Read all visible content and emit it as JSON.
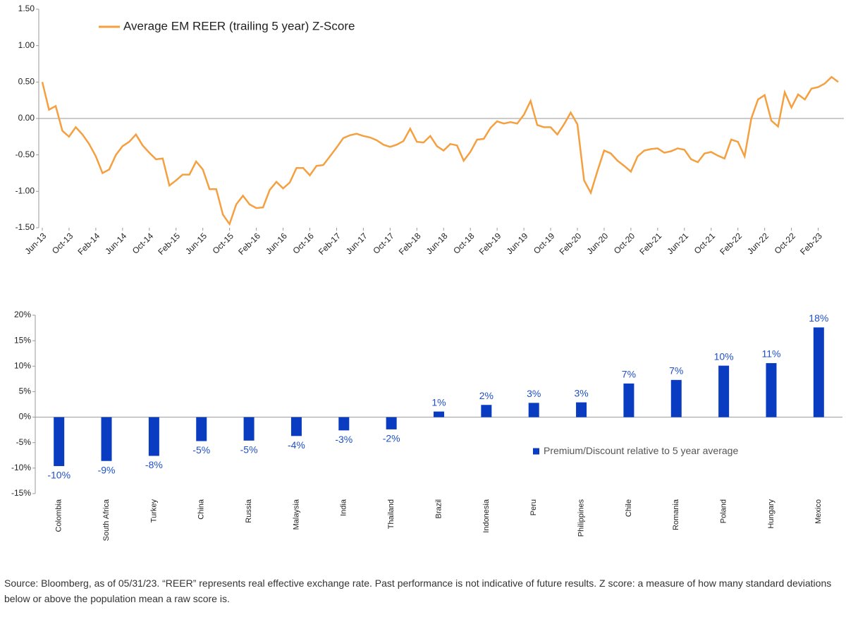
{
  "chart_data": [
    {
      "type": "line",
      "categories": [
        "Jun-13",
        null,
        null,
        null,
        "Oct-13",
        null,
        null,
        null,
        "Feb-14",
        null,
        null,
        null,
        "Jun-14",
        null,
        null,
        null,
        "Oct-14",
        null,
        null,
        null,
        "Feb-15",
        null,
        null,
        null,
        "Jun-15",
        null,
        null,
        null,
        "Oct-15",
        null,
        null,
        null,
        "Feb-16",
        null,
        null,
        null,
        "Jun-16",
        null,
        null,
        null,
        "Oct-16",
        null,
        null,
        null,
        "Feb-17",
        null,
        null,
        null,
        "Jun-17",
        null,
        null,
        null,
        "Oct-17",
        null,
        null,
        null,
        "Feb-18",
        null,
        null,
        null,
        "Jun-18",
        null,
        null,
        null,
        "Oct-18",
        null,
        null,
        null,
        "Feb-19",
        null,
        null,
        null,
        "Jun-19",
        null,
        null,
        null,
        "Oct-19",
        null,
        null,
        null,
        "Feb-20",
        null,
        null,
        null,
        "Jun-20",
        null,
        null,
        null,
        "Oct-20",
        null,
        null,
        null,
        "Feb-21",
        null,
        null,
        null,
        "Jun-21",
        null,
        null,
        null,
        "Oct-21",
        null,
        null,
        null,
        "Feb-22",
        null,
        null,
        null,
        "Jun-22",
        null,
        null,
        null,
        "Oct-22",
        null,
        null,
        null,
        "Feb-23",
        null,
        null,
        null
      ],
      "series": [
        {
          "name": "Average EM REER (trailing 5 year) Z-Score",
          "color": "#f5a040",
          "values": [
            0.5,
            0.12,
            0.17,
            -0.17,
            -0.25,
            -0.12,
            -0.22,
            -0.35,
            -0.52,
            -0.75,
            -0.7,
            -0.5,
            -0.38,
            -0.32,
            -0.22,
            -0.37,
            -0.47,
            -0.56,
            -0.55,
            -0.92,
            -0.85,
            -0.77,
            -0.77,
            -0.59,
            -0.7,
            -0.97,
            -0.97,
            -1.32,
            -1.45,
            -1.18,
            -1.06,
            -1.18,
            -1.23,
            -1.22,
            -0.98,
            -0.87,
            -0.96,
            -0.88,
            -0.68,
            -0.68,
            -0.78,
            -0.65,
            -0.64,
            -0.52,
            -0.4,
            -0.27,
            -0.23,
            -0.21,
            -0.24,
            -0.26,
            -0.3,
            -0.36,
            -0.39,
            -0.36,
            -0.31,
            -0.14,
            -0.32,
            -0.33,
            -0.24,
            -0.38,
            -0.44,
            -0.35,
            -0.37,
            -0.58,
            -0.46,
            -0.29,
            -0.28,
            -0.13,
            -0.04,
            -0.07,
            -0.05,
            -0.07,
            0.05,
            0.24,
            -0.09,
            -0.12,
            -0.12,
            -0.22,
            -0.08,
            0.08,
            -0.08,
            -0.85,
            -1.02,
            -0.72,
            -0.44,
            -0.48,
            -0.58,
            -0.65,
            -0.73,
            -0.52,
            -0.44,
            -0.42,
            -0.41,
            -0.47,
            -0.45,
            -0.41,
            -0.43,
            -0.56,
            -0.6,
            -0.48,
            -0.46,
            -0.51,
            -0.55,
            -0.29,
            -0.32,
            -0.52,
            0.0,
            0.26,
            0.32,
            -0.03,
            -0.11,
            0.36,
            0.15,
            0.33,
            0.26,
            0.41,
            0.43,
            0.48,
            0.57,
            0.5
          ]
        }
      ],
      "ylim": [
        -1.5,
        1.5
      ],
      "yticks": [
        {
          "value": 1.5,
          "label": "1.50"
        },
        {
          "value": 1,
          "label": "1.00"
        },
        {
          "value": 0.5,
          "label": "0.50"
        },
        {
          "value": 0,
          "label": "0.00"
        },
        {
          "value": -0.5,
          "label": "-0.50"
        },
        {
          "value": -1,
          "label": "-1.00"
        },
        {
          "value": -1.5,
          "label": "-1.50"
        }
      ],
      "legend": "top-left"
    },
    {
      "type": "bar",
      "categories": [
        "Colombia",
        "South Africa",
        "Turkey",
        "China",
        "Russia",
        "Malaysia",
        "India",
        "Thailand",
        "Brazil",
        "Indonesia",
        "Peru",
        "Philippines",
        "Chile",
        "Romania",
        "Poland",
        "Hungary",
        "Mexico"
      ],
      "series": [
        {
          "name": "Premium/Discount relative to 5 year average",
          "color": "#0a3cc2",
          "values": [
            -9.6,
            -8.6,
            -7.6,
            -4.7,
            -4.6,
            -3.7,
            -2.6,
            -2.4,
            1.1,
            2.4,
            2.8,
            2.9,
            6.6,
            7.3,
            10.1,
            10.6,
            17.6
          ],
          "value_labels": [
            "-10%",
            "-9%",
            "-8%",
            "-5%",
            "-5%",
            "-4%",
            "-3%",
            "-2%",
            "1%",
            "2%",
            "3%",
            "3%",
            "7%",
            "7%",
            "10%",
            "11%",
            "18%"
          ]
        }
      ],
      "ylim": [
        -15,
        20
      ],
      "yticks": [
        {
          "value": 20,
          "label": "20%"
        },
        {
          "value": 15,
          "label": "15%"
        },
        {
          "value": 10,
          "label": "10%"
        },
        {
          "value": 5,
          "label": "5%"
        },
        {
          "value": 0,
          "label": "0%"
        },
        {
          "value": -5,
          "label": "-5%"
        },
        {
          "value": -10,
          "label": "-10%"
        },
        {
          "value": -15,
          "label": "-15%"
        }
      ],
      "label_color": "#1f50c8",
      "legend": "right"
    }
  ],
  "source": "Source: Bloomberg, as of 05/31/23. “REER” represents real effective exchange rate. Past performance is not indicative of future results. Z score: a measure of how many standard deviations below or above the population mean a raw score is."
}
